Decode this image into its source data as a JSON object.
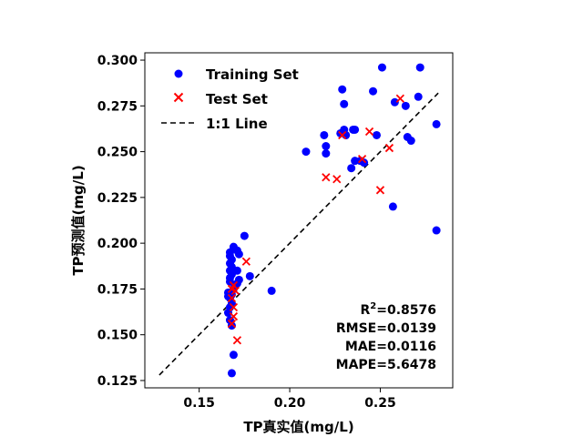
{
  "chart_data": {
    "type": "scatter",
    "xlabel": "TP真实值(mg/L)",
    "ylabel": "TP预测值(mg/L)",
    "xlim": [
      0.12,
      0.29
    ],
    "ylim": [
      0.121,
      0.304
    ],
    "xticks": [
      0.15,
      0.2,
      0.25
    ],
    "xtick_labels": [
      "0.15",
      "0.20",
      "0.25"
    ],
    "yticks": [
      0.125,
      0.15,
      0.175,
      0.2,
      0.225,
      0.25,
      0.275,
      0.3
    ],
    "ytick_labels": [
      "0.125",
      "0.150",
      "0.175",
      "0.200",
      "0.225",
      "0.250",
      "0.275",
      "0.300"
    ],
    "grid": false,
    "legend_position": "top-left",
    "series": [
      {
        "name": "Training Set",
        "marker": "circle",
        "color": "#0000ff",
        "points": [
          [
            0.168,
            0.129
          ],
          [
            0.169,
            0.139
          ],
          [
            0.168,
            0.155
          ],
          [
            0.167,
            0.158
          ],
          [
            0.166,
            0.162
          ],
          [
            0.167,
            0.165
          ],
          [
            0.168,
            0.167
          ],
          [
            0.167,
            0.17
          ],
          [
            0.166,
            0.171
          ],
          [
            0.168,
            0.172
          ],
          [
            0.166,
            0.173
          ],
          [
            0.169,
            0.175
          ],
          [
            0.17,
            0.177
          ],
          [
            0.171,
            0.178
          ],
          [
            0.167,
            0.179
          ],
          [
            0.167,
            0.181
          ],
          [
            0.168,
            0.183
          ],
          [
            0.167,
            0.185
          ],
          [
            0.168,
            0.187
          ],
          [
            0.167,
            0.189
          ],
          [
            0.168,
            0.191
          ],
          [
            0.167,
            0.193
          ],
          [
            0.167,
            0.195
          ],
          [
            0.169,
            0.197
          ],
          [
            0.169,
            0.198
          ],
          [
            0.171,
            0.196
          ],
          [
            0.172,
            0.194
          ],
          [
            0.171,
            0.185
          ],
          [
            0.172,
            0.18
          ],
          [
            0.175,
            0.204
          ],
          [
            0.178,
            0.182
          ],
          [
            0.19,
            0.174
          ],
          [
            0.209,
            0.25
          ],
          [
            0.22,
            0.253
          ],
          [
            0.219,
            0.259
          ],
          [
            0.22,
            0.249
          ],
          [
            0.228,
            0.26
          ],
          [
            0.229,
            0.284
          ],
          [
            0.23,
            0.276
          ],
          [
            0.23,
            0.262
          ],
          [
            0.231,
            0.259
          ],
          [
            0.234,
            0.241
          ],
          [
            0.235,
            0.262
          ],
          [
            0.236,
            0.245
          ],
          [
            0.236,
            0.262
          ],
          [
            0.239,
            0.245
          ],
          [
            0.241,
            0.244
          ],
          [
            0.246,
            0.283
          ],
          [
            0.248,
            0.259
          ],
          [
            0.251,
            0.296
          ],
          [
            0.257,
            0.22
          ],
          [
            0.258,
            0.277
          ],
          [
            0.264,
            0.275
          ],
          [
            0.265,
            0.258
          ],
          [
            0.267,
            0.256
          ],
          [
            0.271,
            0.28
          ],
          [
            0.272,
            0.296
          ],
          [
            0.281,
            0.265
          ],
          [
            0.281,
            0.207
          ]
        ]
      },
      {
        "name": "Test Set",
        "marker": "x",
        "color": "#ff0000",
        "points": [
          [
            0.168,
            0.156
          ],
          [
            0.169,
            0.16
          ],
          [
            0.169,
            0.165
          ],
          [
            0.168,
            0.17
          ],
          [
            0.17,
            0.174
          ],
          [
            0.168,
            0.175
          ],
          [
            0.169,
            0.177
          ],
          [
            0.171,
            0.147
          ],
          [
            0.176,
            0.19
          ],
          [
            0.22,
            0.236
          ],
          [
            0.226,
            0.235
          ],
          [
            0.229,
            0.259
          ],
          [
            0.24,
            0.246
          ],
          [
            0.244,
            0.261
          ],
          [
            0.25,
            0.229
          ],
          [
            0.255,
            0.252
          ],
          [
            0.261,
            0.279
          ]
        ]
      }
    ],
    "reference_line": {
      "name": "1:1 Line",
      "style": "dashed",
      "color": "#000000",
      "points": [
        [
          0.128,
          0.128
        ],
        [
          0.282,
          0.282
        ]
      ]
    },
    "annotations": {
      "r2_label": "R",
      "r2_superscript": "2",
      "r2_value": "=0.8576",
      "rmse": "RMSE=0.0139",
      "mae": "MAE=0.0116",
      "mape": "MAPE=5.6478"
    }
  }
}
